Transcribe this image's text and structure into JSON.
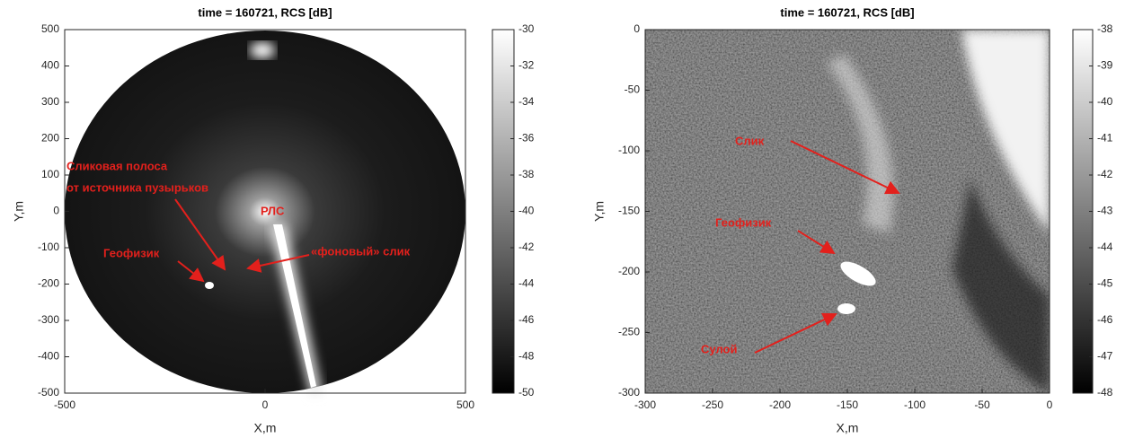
{
  "chart_data": [
    {
      "type": "heatmap",
      "title": "time = 160721, RCS [dB]",
      "xlabel": "X,m",
      "ylabel": "Y,m",
      "xlim": [
        -500,
        500
      ],
      "xticks": [
        -500,
        0,
        500
      ],
      "ylim": [
        -500,
        500
      ],
      "yticks": [
        -500,
        -400,
        -300,
        -200,
        -100,
        0,
        100,
        200,
        300,
        400,
        500
      ],
      "colorbar": {
        "lim": [
          -50,
          -30
        ],
        "ticks": [
          -50,
          -48,
          -46,
          -44,
          -42,
          -40,
          -38,
          -36,
          -34,
          -32,
          -30
        ]
      },
      "annotations": [
        "Сликовая полоса",
        "от источника пузырьков",
        "РЛС",
        "Геофизик",
        "«фоновый» слик"
      ]
    },
    {
      "type": "heatmap",
      "title": "time = 160721, RCS [dB]",
      "xlabel": "X,m",
      "ylabel": "Y,m",
      "xlim": [
        -300,
        0
      ],
      "xticks": [
        -300,
        -250,
        -200,
        -150,
        -100,
        -50,
        0
      ],
      "ylim": [
        -300,
        0
      ],
      "yticks": [
        -300,
        -250,
        -200,
        -150,
        -100,
        -50,
        0
      ],
      "colorbar": {
        "lim": [
          -48,
          -38
        ],
        "ticks": [
          -48,
          -47,
          -46,
          -45,
          -44,
          -43,
          -42,
          -41,
          -40,
          -39,
          -38
        ]
      },
      "annotations": [
        "Слик",
        "Геофизик",
        "Сулой"
      ]
    }
  ]
}
